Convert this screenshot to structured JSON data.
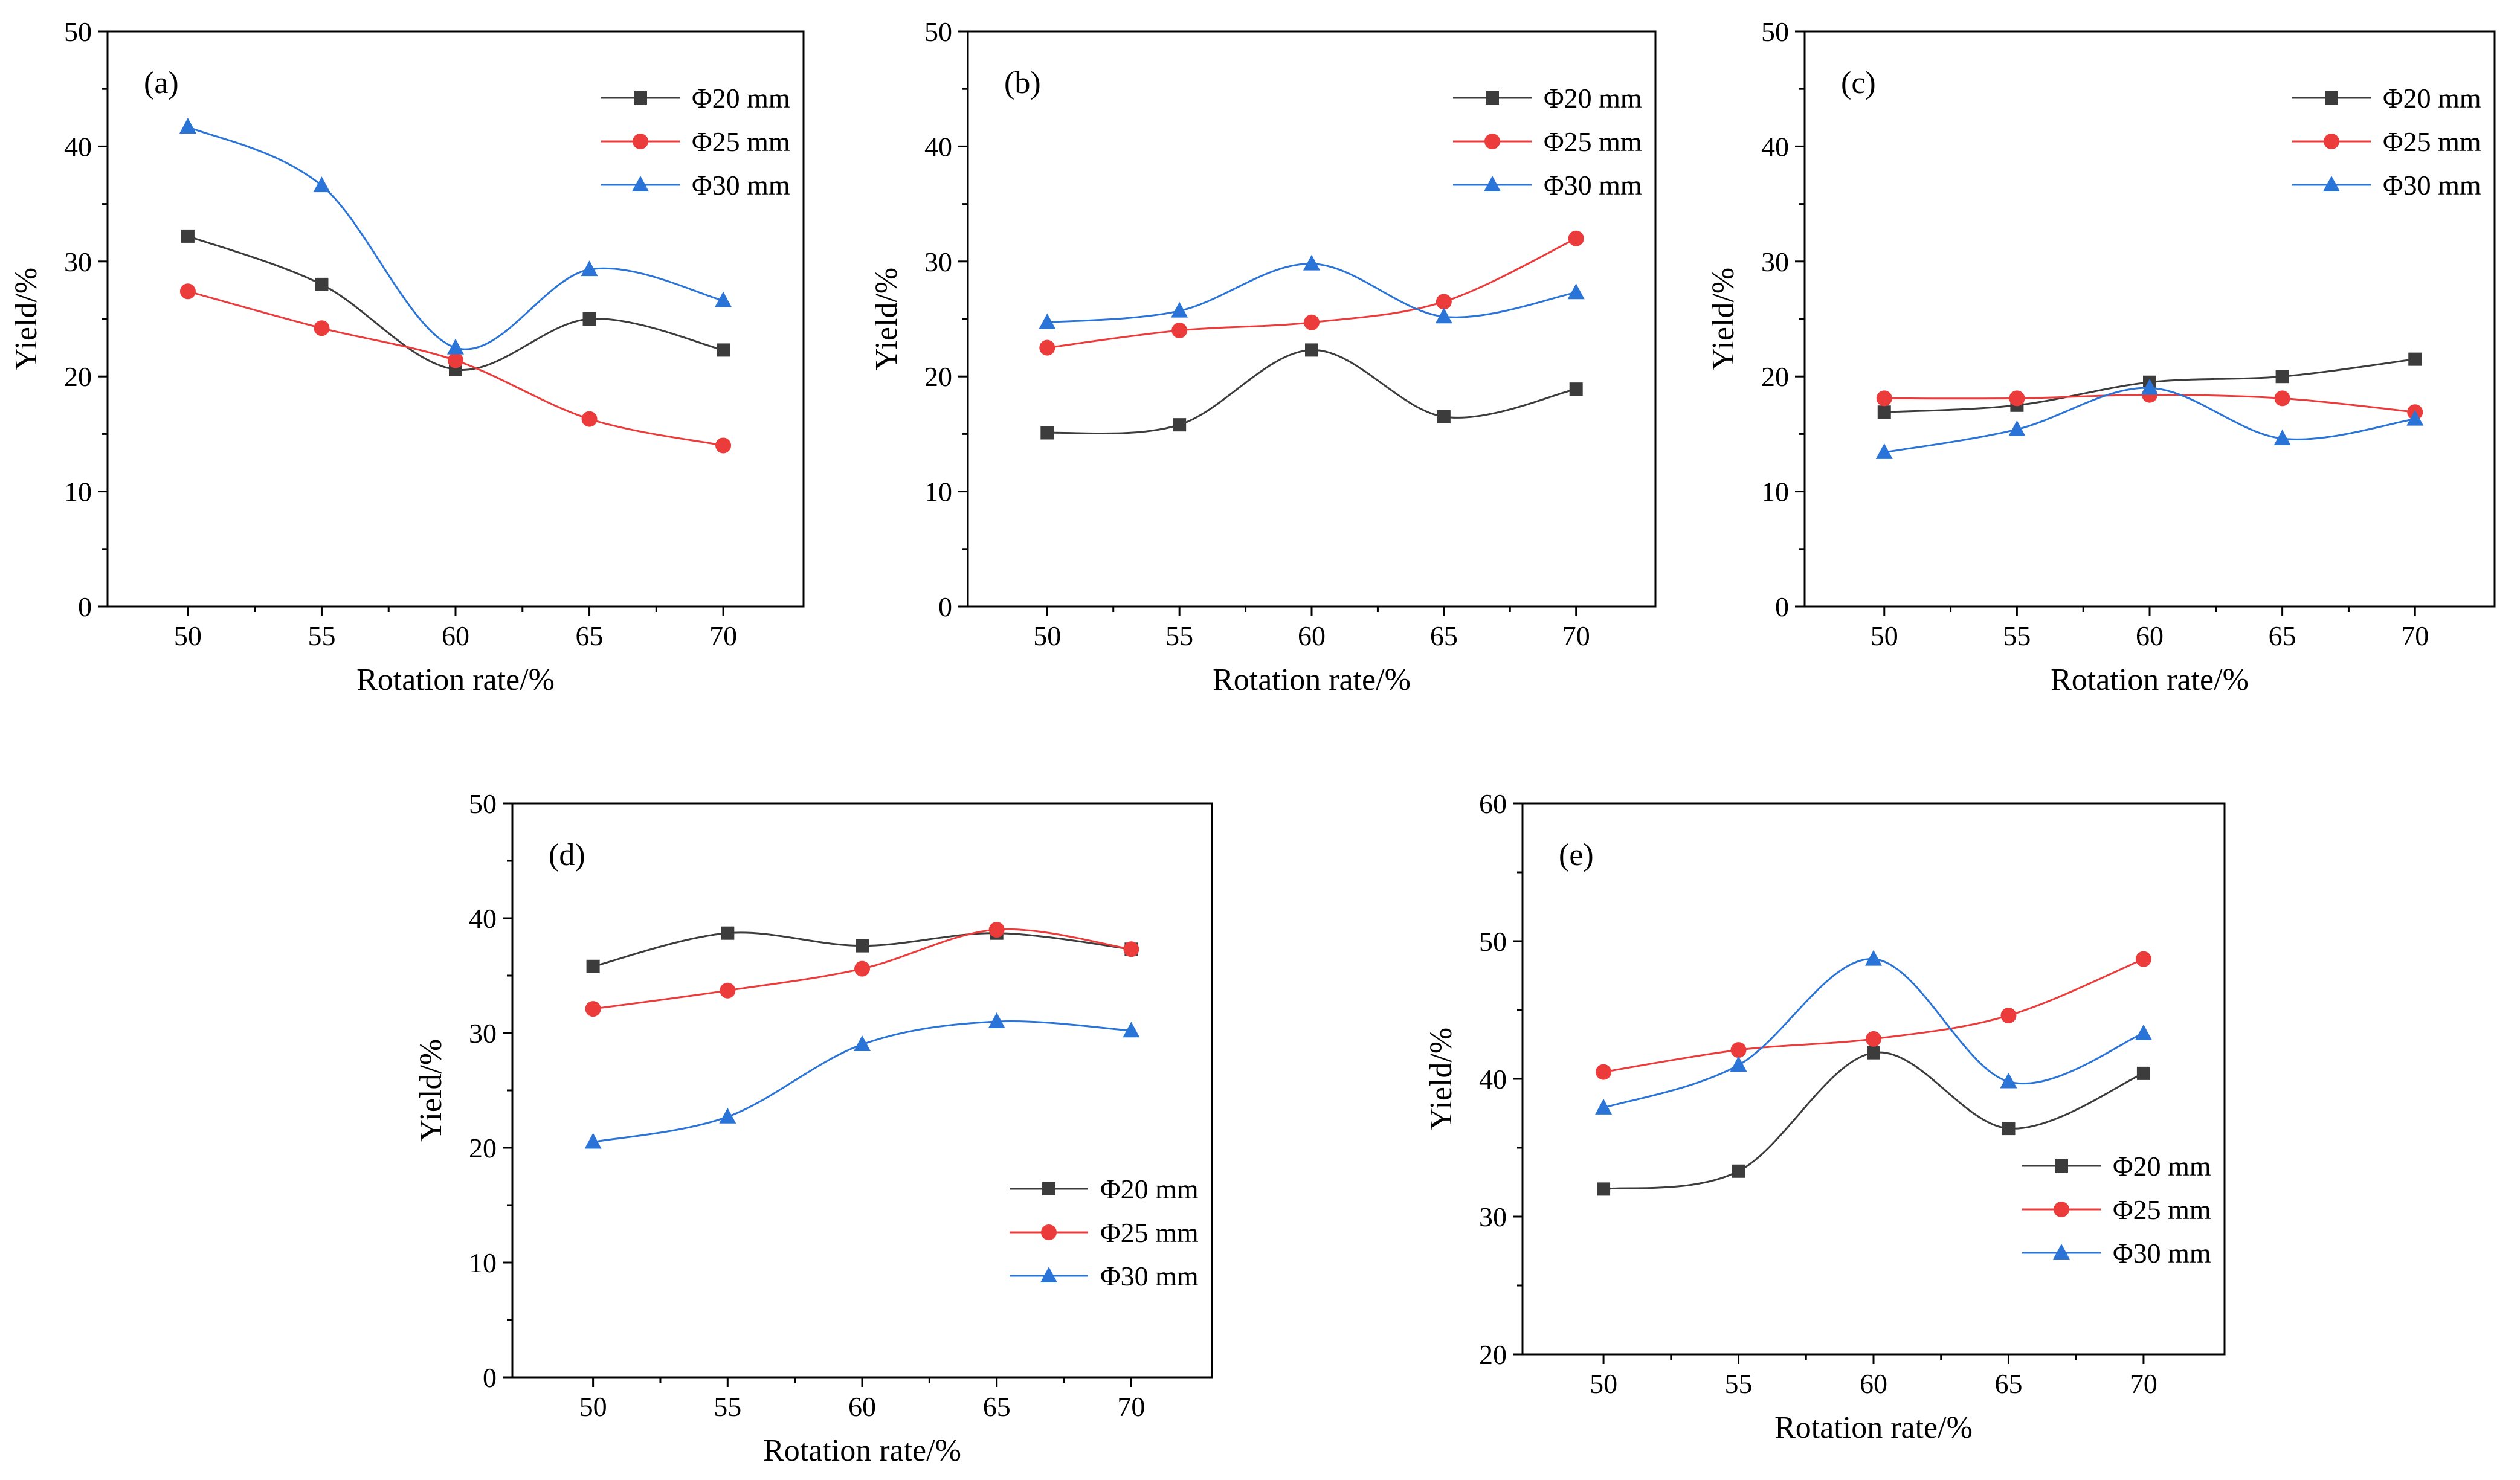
{
  "colors": {
    "phi20": "#3c3c3c",
    "phi25": "#ec3b3b",
    "phi30": "#2a74d8",
    "axis": "#000000"
  },
  "legend": {
    "phi20": "Φ20 mm",
    "phi25": "Φ25 mm",
    "phi30": "Φ30 mm"
  },
  "chart_data": [
    {
      "id": "a",
      "panel_label": "(a)",
      "type": "line",
      "legend_pos": "top-right",
      "xlabel": "Rotation rate/%",
      "ylabel": "Yield/%",
      "x": [
        50,
        55,
        60,
        65,
        70
      ],
      "xlim": [
        47,
        73
      ],
      "ylim": [
        0,
        50
      ],
      "xticks": [
        50,
        55,
        60,
        65,
        70
      ],
      "yticks": [
        0,
        10,
        20,
        30,
        40,
        50
      ],
      "series": [
        {
          "name": "Φ20 mm",
          "key": "phi20",
          "marker": "square",
          "values": [
            32.2,
            28.0,
            20.6,
            25.0,
            22.3
          ]
        },
        {
          "name": "Φ25 mm",
          "key": "phi25",
          "marker": "circle",
          "values": [
            27.4,
            24.2,
            21.4,
            16.3,
            14.0
          ]
        },
        {
          "name": "Φ30 mm",
          "key": "phi30",
          "marker": "triangle",
          "values": [
            41.7,
            36.6,
            22.5,
            29.3,
            26.6
          ]
        }
      ]
    },
    {
      "id": "b",
      "panel_label": "(b)",
      "type": "line",
      "legend_pos": "top-right",
      "xlabel": "Rotation rate/%",
      "ylabel": "Yield/%",
      "x": [
        50,
        55,
        60,
        65,
        70
      ],
      "xlim": [
        47,
        73
      ],
      "ylim": [
        0,
        50
      ],
      "xticks": [
        50,
        55,
        60,
        65,
        70
      ],
      "yticks": [
        0,
        10,
        20,
        30,
        40,
        50
      ],
      "series": [
        {
          "name": "Φ20 mm",
          "key": "phi20",
          "marker": "square",
          "values": [
            15.1,
            15.8,
            22.3,
            16.5,
            18.9
          ]
        },
        {
          "name": "Φ25 mm",
          "key": "phi25",
          "marker": "circle",
          "values": [
            22.5,
            24.0,
            24.7,
            26.5,
            32.0
          ]
        },
        {
          "name": "Φ30 mm",
          "key": "phi30",
          "marker": "triangle",
          "values": [
            24.7,
            25.7,
            29.8,
            25.2,
            27.3
          ]
        }
      ]
    },
    {
      "id": "c",
      "panel_label": "(c)",
      "type": "line",
      "legend_pos": "top-right",
      "xlabel": "Rotation rate/%",
      "ylabel": "Yield/%",
      "x": [
        50,
        55,
        60,
        65,
        70
      ],
      "xlim": [
        47,
        73
      ],
      "ylim": [
        0,
        50
      ],
      "xticks": [
        50,
        55,
        60,
        65,
        70
      ],
      "yticks": [
        0,
        10,
        20,
        30,
        40,
        50
      ],
      "series": [
        {
          "name": "Φ20 mm",
          "key": "phi20",
          "marker": "square",
          "values": [
            16.9,
            17.5,
            19.5,
            20.0,
            21.5
          ]
        },
        {
          "name": "Φ25 mm",
          "key": "phi25",
          "marker": "circle",
          "values": [
            18.1,
            18.1,
            18.4,
            18.1,
            16.9
          ]
        },
        {
          "name": "Φ30 mm",
          "key": "phi30",
          "marker": "triangle",
          "values": [
            13.4,
            15.4,
            19.0,
            14.6,
            16.3
          ]
        }
      ]
    },
    {
      "id": "d",
      "panel_label": "(d)",
      "type": "line",
      "legend_pos": "bottom-right",
      "xlabel": "Rotation rate/%",
      "ylabel": "Yield/%",
      "x": [
        50,
        55,
        60,
        65,
        70
      ],
      "xlim": [
        47,
        73
      ],
      "ylim": [
        0,
        50
      ],
      "xticks": [
        50,
        55,
        60,
        65,
        70
      ],
      "yticks": [
        0,
        10,
        20,
        30,
        40,
        50
      ],
      "series": [
        {
          "name": "Φ20 mm",
          "key": "phi20",
          "marker": "square",
          "values": [
            35.8,
            38.7,
            37.6,
            38.7,
            37.3
          ]
        },
        {
          "name": "Φ25 mm",
          "key": "phi25",
          "marker": "circle",
          "values": [
            32.1,
            33.7,
            35.6,
            39.0,
            37.3
          ]
        },
        {
          "name": "Φ30 mm",
          "key": "phi30",
          "marker": "triangle",
          "values": [
            20.5,
            22.7,
            29.0,
            31.0,
            30.2
          ]
        }
      ]
    },
    {
      "id": "e",
      "panel_label": "(e)",
      "type": "line",
      "legend_pos": "bottom-right",
      "xlabel": "Rotation rate/%",
      "ylabel": "Yield/%",
      "x": [
        50,
        55,
        60,
        65,
        70
      ],
      "xlim": [
        47,
        73
      ],
      "ylim": [
        20,
        60
      ],
      "xticks": [
        50,
        55,
        60,
        65,
        70
      ],
      "yticks": [
        20,
        30,
        40,
        50,
        60
      ],
      "series": [
        {
          "name": "Φ20 mm",
          "key": "phi20",
          "marker": "square",
          "values": [
            32.0,
            33.3,
            41.9,
            36.4,
            40.4
          ]
        },
        {
          "name": "Φ25 mm",
          "key": "phi25",
          "marker": "circle",
          "values": [
            40.5,
            42.1,
            42.9,
            44.6,
            48.7
          ]
        },
        {
          "name": "Φ30 mm",
          "key": "phi30",
          "marker": "triangle",
          "values": [
            37.9,
            41.0,
            48.7,
            39.8,
            43.3
          ]
        }
      ]
    }
  ]
}
